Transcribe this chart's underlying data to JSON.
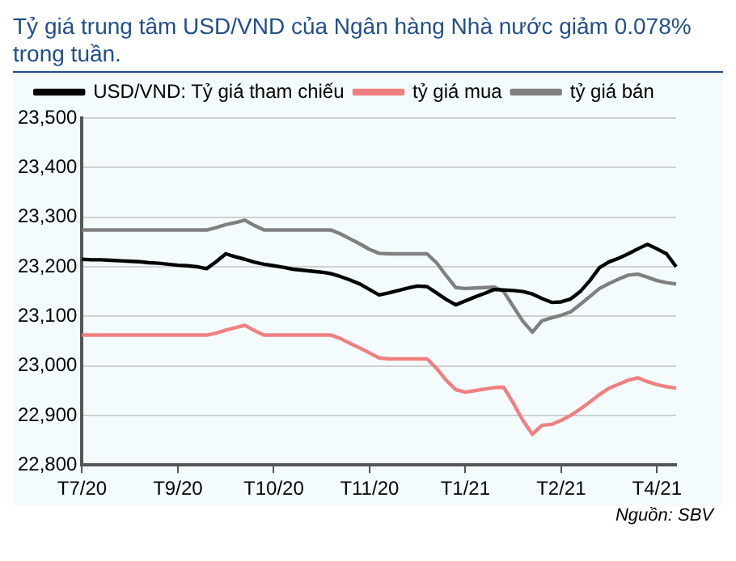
{
  "chart_data": {
    "type": "line",
    "title": "Tỷ giá trung tâm USD/VND của Ngân hàng Nhà nước giảm 0.078% trong tuần.",
    "annotations": [
      "Nguồn: SBV"
    ],
    "categories": [
      "T7/20",
      null,
      null,
      null,
      null,
      null,
      null,
      null,
      null,
      null,
      "T9/20",
      null,
      null,
      null,
      null,
      null,
      null,
      null,
      null,
      null,
      "T10/20",
      null,
      null,
      null,
      null,
      null,
      null,
      null,
      null,
      null,
      "T11/20",
      null,
      null,
      null,
      null,
      null,
      null,
      null,
      null,
      null,
      "T1/21",
      null,
      null,
      null,
      null,
      null,
      null,
      null,
      null,
      null,
      "T2/21",
      null,
      null,
      null,
      null,
      null,
      null,
      null,
      null,
      null,
      "T4/21",
      null,
      null
    ],
    "series": [
      {
        "name": "USD/VND: Tỷ giá tham chiếu",
        "color": "#000000",
        "values": [
          23215,
          23214,
          23214,
          23213,
          23212,
          23211,
          23210,
          23208,
          23207,
          23205,
          23203,
          23202,
          23200,
          23196,
          23210,
          23226,
          23220,
          23215,
          23209,
          23205,
          23202,
          23199,
          23195,
          23193,
          23191,
          23189,
          23186,
          23180,
          23173,
          23165,
          23154,
          23143,
          23147,
          23152,
          23157,
          23161,
          23160,
          23147,
          23134,
          23123,
          23131,
          23139,
          23146,
          23154,
          23153,
          23152,
          23150,
          23145,
          23136,
          23128,
          23129,
          23135,
          23150,
          23172,
          23198,
          23210,
          23217,
          23226,
          23236,
          23245,
          23236,
          23226,
          23200
        ]
      },
      {
        "name": "tỷ giá mua",
        "color": "#f08080",
        "values": [
          23062,
          23062,
          23062,
          23062,
          23062,
          23062,
          23062,
          23062,
          23062,
          23062,
          23062,
          23062,
          23062,
          23062,
          23066,
          23072,
          23077,
          23082,
          23071,
          23062,
          23062,
          23062,
          23062,
          23062,
          23062,
          23062,
          23062,
          23055,
          23045,
          23036,
          23026,
          23016,
          23014,
          23014,
          23014,
          23014,
          23014,
          22995,
          22971,
          22952,
          22947,
          22950,
          22953,
          22956,
          22957,
          22925,
          22890,
          22862,
          22880,
          22882,
          22890,
          22900,
          22913,
          22927,
          22942,
          22955,
          22963,
          22971,
          22976,
          22968,
          22962,
          22958,
          22955
        ]
      },
      {
        "name": "tỷ giá bán",
        "color": "#808080",
        "values": [
          23274,
          23274,
          23274,
          23274,
          23274,
          23274,
          23274,
          23274,
          23274,
          23274,
          23274,
          23274,
          23274,
          23274,
          23279,
          23285,
          23289,
          23294,
          23283,
          23274,
          23274,
          23274,
          23274,
          23274,
          23274,
          23274,
          23274,
          23266,
          23256,
          23246,
          23235,
          23227,
          23226,
          23226,
          23226,
          23226,
          23226,
          23208,
          23182,
          23158,
          23156,
          23157,
          23158,
          23159,
          23150,
          23120,
          23090,
          23068,
          23091,
          23097,
          23102,
          23109,
          23124,
          23140,
          23156,
          23166,
          23175,
          23183,
          23185,
          23179,
          23172,
          23168,
          23165
        ]
      }
    ],
    "ylim": [
      22800,
      23500
    ],
    "yticks": [
      {
        "value": 22800,
        "label": "22,800"
      },
      {
        "value": 22900,
        "label": "22,900"
      },
      {
        "value": 23000,
        "label": "23,000"
      },
      {
        "value": 23100,
        "label": "23,100"
      },
      {
        "value": 23200,
        "label": "23,200"
      },
      {
        "value": 23300,
        "label": "23,300"
      },
      {
        "value": 23400,
        "label": "23,400"
      },
      {
        "value": 23500,
        "label": "23,500"
      }
    ],
    "grid": "y",
    "legend": "top",
    "marker": "none",
    "line_style": "solid"
  }
}
